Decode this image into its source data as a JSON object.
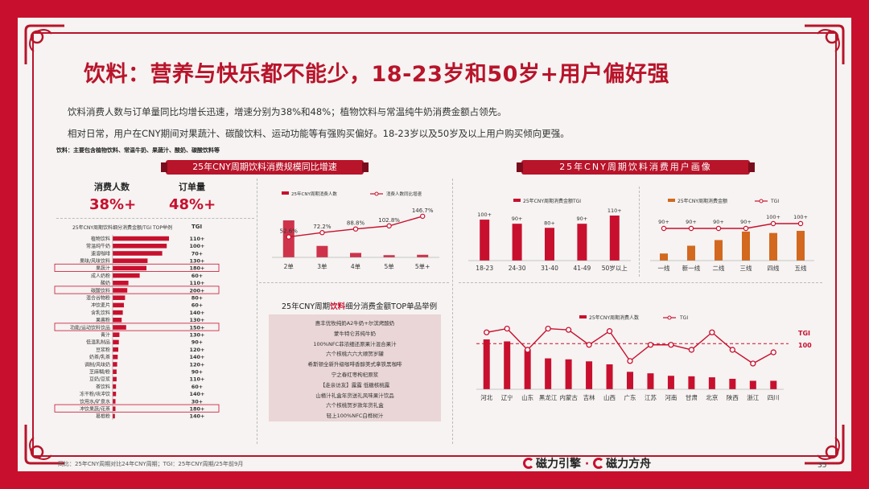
{
  "title": "饮料：营养与快乐都不能少，18-23岁和50岁+用户偏好强",
  "paragraphs": [
    "饮料消费人数与订单量同比均增长迅速，增速分别为38%和48%；植物饮料与常温纯牛奶消费金额占领先。",
    "相对日常，用户在CNY期间对果蔬汁、碳酸饮料、运动功能等有强购买偏好。18-23岁以及50岁及以上用户购买倾向更强。"
  ],
  "note": "饮料：主要包含植物饮料、常温牛奶、果蔬汁、酸奶、碳酸饮料等",
  "left_banner": "25年CNY周期饮料消费规模同比增速",
  "right_banner": "25年CNY周期饮料消费用户画像",
  "metrics": [
    {
      "label": "消费人数",
      "value": "38%+"
    },
    {
      "label": "订单量",
      "value": "48%+"
    }
  ],
  "colors": {
    "brand_red": "#c8102e",
    "dark_red": "#b8142a",
    "orange": "#d2691e",
    "bar_red": "#c8102e"
  },
  "chart_data": [
    {
      "type": "bar",
      "title": "25年CNY周期饮料细分消费金额/TGI TOP举例",
      "tgi_header": "TGI",
      "categories": [
        "植物饮料",
        "常温纯牛奶",
        "速溶咖啡",
        "果味/风味饮料",
        "果蔬汁",
        "成人奶粉",
        "酸奶",
        "碳酸饮料",
        "混合谷物粉",
        "冲饮麦片",
        "含乳饮料",
        "果酱粉",
        "功能/运动饮料饮品",
        "青汁",
        "低温乳制品",
        "豆浆粉",
        "奶茶/乳茶",
        "调制/风味奶",
        "芝麻糊/粉",
        "豆奶/豆浆",
        "茶饮料",
        "冻干粉/块冲饮",
        "饮用水/矿泉水",
        "冲饮果蔬/花茶",
        "葛根粉"
      ],
      "values": [
        100,
        96,
        88,
        62,
        60,
        48,
        28,
        26,
        22,
        20,
        18,
        16,
        24,
        12,
        11,
        10,
        9,
        8,
        7,
        7,
        6,
        6,
        5,
        5,
        4
      ],
      "tgi": [
        "110+",
        "100+",
        "70+",
        "130+",
        "180+",
        "60+",
        "110+",
        "200+",
        "80+",
        "60+",
        "140+",
        "130+",
        "150+",
        "130+",
        "90+",
        "120+",
        "140+",
        "120+",
        "90+",
        "110+",
        "60+",
        "140+",
        "30+",
        "180+",
        "140+"
      ],
      "highlighted": [
        "果蔬汁",
        "碳酸饮料",
        "功能/运动饮料饮品",
        "冲饮果蔬/花茶"
      ]
    },
    {
      "type": "bar",
      "series": [
        {
          "name": "25年CNY周期消费人数",
          "values": [
            100,
            31,
            12,
            6,
            7
          ]
        },
        {
          "name": "消费人数同比增速",
          "values": [
            52.6,
            72.2,
            88.8,
            102.8,
            146.7
          ]
        }
      ],
      "categories": [
        "2单",
        "3单",
        "4单",
        "5单",
        "5单+"
      ],
      "labels": [
        "52.6%",
        "72.2%",
        "88.8%",
        "102.8%",
        "146.7%"
      ]
    },
    {
      "type": "bar",
      "series": [
        {
          "name": "25年CNY周期消费金额TGI",
          "values": [
            100,
            90,
            80,
            90,
            110
          ]
        }
      ],
      "categories": [
        "18-23",
        "24-30",
        "31-40",
        "41-49",
        "50岁以上"
      ],
      "labels": [
        "100+",
        "90+",
        "80+",
        "90+",
        "110+"
      ]
    },
    {
      "type": "bar",
      "series": [
        {
          "name": "25年CNY周期消费金额",
          "values": [
            20,
            42,
            58,
            82,
            78,
            84
          ]
        },
        {
          "name": "TGI",
          "values": [
            90,
            90,
            90,
            90,
            100,
            100
          ]
        }
      ],
      "categories": [
        "一线",
        "新一线",
        "二线",
        "三线",
        "四线",
        "五线"
      ],
      "labels": [
        "90+",
        "90+",
        "90+",
        "90+",
        "100+",
        "100+"
      ]
    },
    {
      "type": "bar",
      "series": [
        {
          "name": "25年CNY周期消费人数",
          "values": [
            100,
            96,
            80,
            62,
            60,
            56,
            50,
            35,
            32,
            27,
            26,
            24,
            21,
            17,
            17
          ]
        },
        {
          "name": "TGI",
          "values": [
            109,
            112,
            95,
            112,
            111,
            99,
            110,
            86,
            99,
            99,
            95,
            109,
            95,
            84,
            93
          ]
        }
      ],
      "categories": [
        "河北",
        "辽宁",
        "山东",
        "黑龙江",
        "内蒙古",
        "吉林",
        "山西",
        "广东",
        "江苏",
        "河南",
        "甘肃",
        "北京",
        "陕西",
        "浙江",
        "四川"
      ],
      "ref_label": "TGI",
      "ref_value": "100"
    }
  ],
  "top_list": {
    "title_prefix": "25年CNY周期",
    "title_highlight": "饮料",
    "title_suffix": "细分消费金额TOP单品举例",
    "items": [
      "惠丰优牧纯奶A2牛奶+尔滨烤酸奶",
      "蒙牛特仑苏纯牛奶",
      "100%NFC菲浓细还原果汁混合果汁",
      "六个核桃六六大顺贺岁罐",
      "希斯顿全新升级咖啡香醇美式拿铁黑咖啡",
      "宁之春红枣枸杞原浆",
      "【走亲访友】露露 低糖核桃露",
      "山楂汁礼盒年货送礼风味果汁饮品",
      "六个核桃贺岁款年货礼盒",
      "轻上100%NFC白桦树汁"
    ]
  },
  "footer": "同比：25年CNY周期对比24年CNY周期；TGI：25年CNY周期/25年前9月",
  "brand": {
    "left": "磁力引擎",
    "sep": "·",
    "right": "磁力方舟"
  },
  "page": "35"
}
